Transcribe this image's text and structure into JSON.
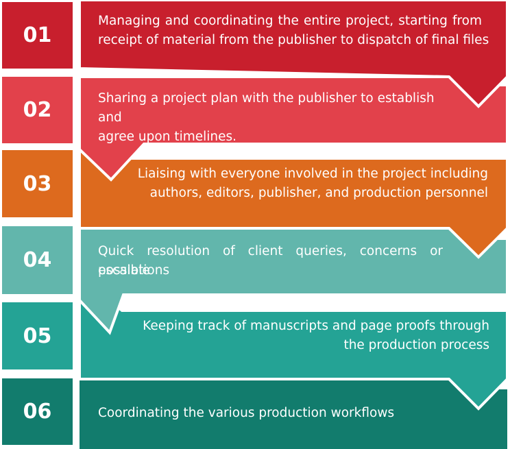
{
  "steps": [
    {
      "number": "01",
      "text_lines": [
        "Managing and coordinating the entire project, starting from",
        "receipt of material from the publisher to dispatch of final files"
      ],
      "color": "#c81f2d"
    },
    {
      "number": "02",
      "text_lines": [
        "Sharing a project plan with the publisher to establish and",
        "agree upon timelines."
      ],
      "color": "#e2414b"
    },
    {
      "number": "03",
      "text_lines": [
        "Liaising with everyone involved in the project including",
        "authors, editors, publisher, and production personnel"
      ],
      "color": "#dd6a1e"
    },
    {
      "number": "04",
      "text_lines": [
        "Quick resolution of client queries, concerns or possible",
        "escalations"
      ],
      "color": "#62b6ac"
    },
    {
      "number": "05",
      "text_lines": [
        "Keeping track of manuscripts and page proofs through",
        "the production process"
      ],
      "color": "#24a395"
    },
    {
      "number": "06",
      "text_lines": [
        "Coordinating the various production workflows"
      ],
      "color": "#127c6d"
    }
  ]
}
